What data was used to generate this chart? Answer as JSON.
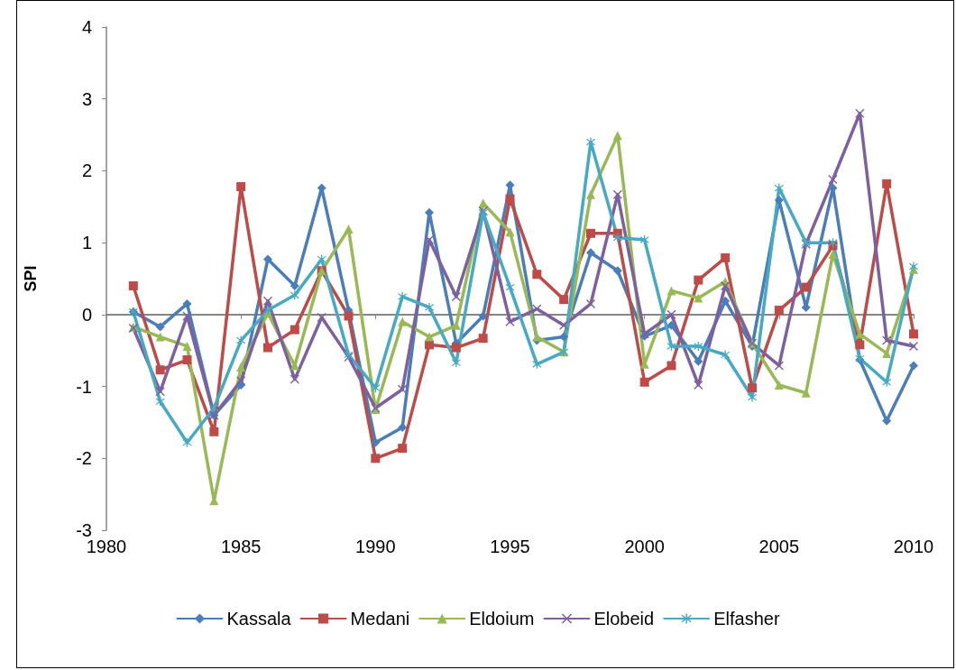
{
  "chart_data": {
    "type": "line",
    "ylabel": "SPI",
    "x": [
      1981,
      1982,
      1983,
      1984,
      1985,
      1986,
      1987,
      1988,
      1989,
      1990,
      1991,
      1992,
      1993,
      1994,
      1995,
      1996,
      1997,
      1998,
      1999,
      2000,
      2001,
      2002,
      2003,
      2004,
      2005,
      2006,
      2007,
      2008,
      2009,
      2010
    ],
    "xlim": [
      1980,
      2010
    ],
    "xticks": [
      1980,
      1985,
      1990,
      1995,
      2000,
      2005,
      2010
    ],
    "ylim": [
      -3,
      4
    ],
    "yticks": [
      -3,
      -2,
      -1,
      0,
      1,
      2,
      3,
      4
    ],
    "legend": "bottom",
    "line_style": "solid",
    "series": [
      {
        "name": "Kassala",
        "color": "#4a7ebb",
        "marker": "diamond",
        "values": [
          0.04,
          -0.17,
          0.15,
          -1.4,
          -0.98,
          0.77,
          0.4,
          1.76,
          0.06,
          -1.78,
          -1.57,
          1.42,
          -0.4,
          -0.02,
          1.8,
          -0.36,
          -0.31,
          0.86,
          0.61,
          -0.3,
          -0.15,
          -0.65,
          0.19,
          -0.44,
          1.59,
          0.1,
          1.76,
          -0.63,
          -1.48,
          -0.71
        ]
      },
      {
        "name": "Medani",
        "color": "#be4b48",
        "marker": "square",
        "values": [
          0.4,
          -0.77,
          -0.63,
          -1.63,
          1.78,
          -0.46,
          -0.21,
          0.61,
          -0.02,
          -2.0,
          -1.86,
          -0.42,
          -0.46,
          -0.33,
          1.61,
          0.56,
          0.21,
          1.13,
          1.13,
          -0.94,
          -0.71,
          0.48,
          0.79,
          -1.02,
          0.06,
          0.38,
          0.96,
          -0.42,
          1.82,
          -0.27
        ]
      },
      {
        "name": "Eldoium",
        "color": "#98b954",
        "marker": "triangle",
        "values": [
          -0.17,
          -0.31,
          -0.44,
          -2.59,
          -0.73,
          0.02,
          -0.71,
          0.61,
          1.19,
          -1.32,
          -0.1,
          -0.31,
          -0.15,
          1.55,
          1.15,
          -0.31,
          -0.52,
          1.67,
          2.49,
          -0.69,
          0.33,
          0.23,
          0.46,
          -0.4,
          -0.98,
          -1.09,
          0.84,
          -0.27,
          -0.54,
          0.63
        ]
      },
      {
        "name": "Elobeid",
        "color": "#7d60a0",
        "marker": "cross",
        "values": [
          -0.19,
          -1.07,
          -0.02,
          -1.4,
          -0.92,
          0.19,
          -0.9,
          -0.04,
          -0.59,
          -1.3,
          -1.04,
          1.04,
          0.25,
          1.44,
          -0.1,
          0.08,
          -0.15,
          0.15,
          1.67,
          -0.27,
          0,
          -0.98,
          0.4,
          -0.4,
          -0.71,
          0.98,
          1.88,
          2.8,
          -0.36,
          -0.44
        ]
      },
      {
        "name": "Elfasher",
        "color": "#46aac5",
        "marker": "star",
        "values": [
          0.04,
          -1.21,
          -1.78,
          -1.3,
          -0.36,
          0.06,
          0.27,
          0.77,
          -0.56,
          -1.02,
          0.25,
          0.1,
          -0.67,
          1.42,
          0.38,
          -0.69,
          -0.52,
          2.4,
          1.07,
          1.04,
          -0.44,
          -0.44,
          -0.56,
          -1.15,
          1.76,
          1.0,
          1.0,
          -0.61,
          -0.94,
          0.67
        ]
      }
    ]
  }
}
